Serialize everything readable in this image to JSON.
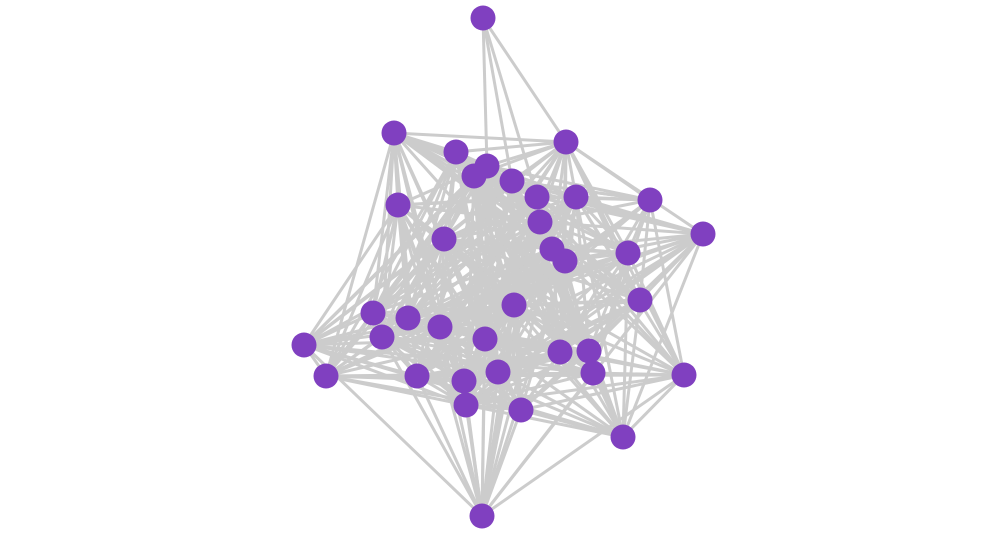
{
  "diagram": {
    "type": "network-graph",
    "node_count": 37,
    "colors": {
      "node": "#8040c0",
      "edge": "#cccccc",
      "background": "#ffffff"
    },
    "hub_node_edges": [
      3,
      5,
      7,
      8
    ]
  }
}
